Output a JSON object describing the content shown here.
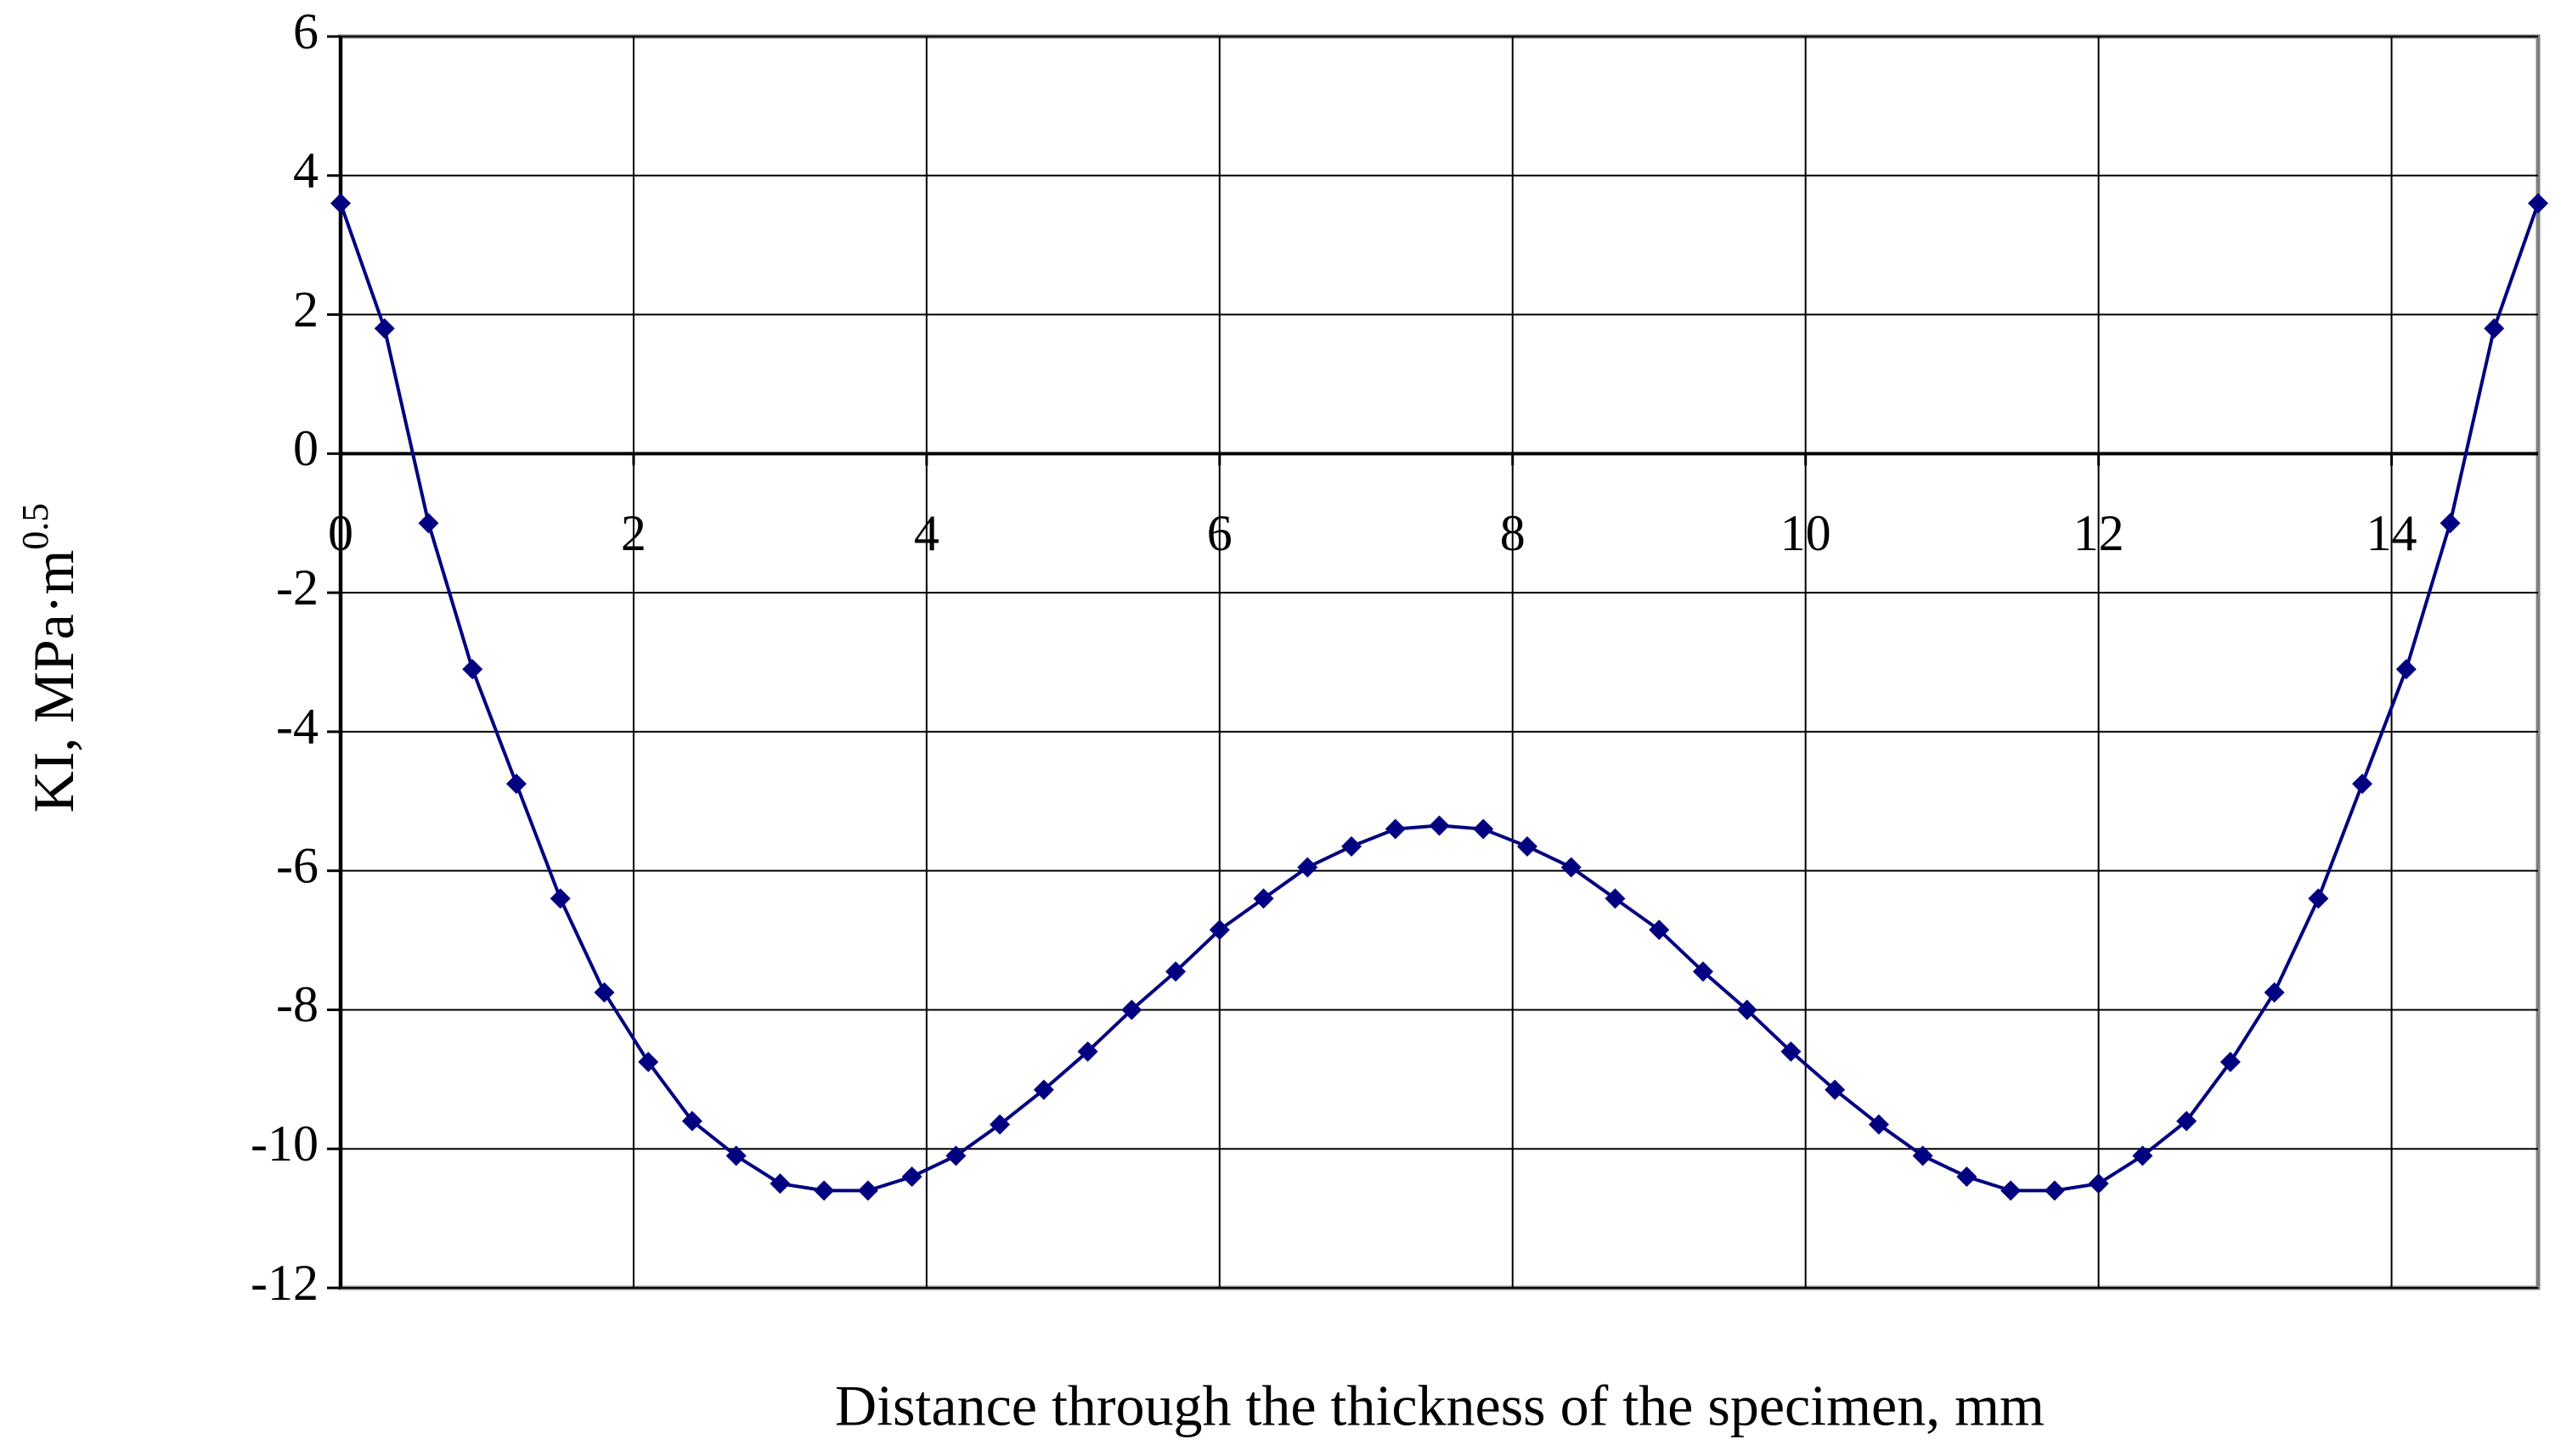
{
  "chart_data": {
    "type": "line",
    "xlabel": "Distance through the thickness of the specimen, mm",
    "ylabel": {
      "text": "KI, MPa·m",
      "superscript": "0.5"
    },
    "x": [
      0,
      0.3,
      0.6,
      0.9,
      1.2,
      1.5,
      1.8,
      2.1,
      2.4,
      2.7,
      3.0,
      3.3,
      3.6,
      3.9,
      4.2,
      4.5,
      4.8,
      5.1,
      5.4,
      5.7,
      6.0,
      6.3,
      6.6,
      6.9,
      7.2,
      7.5,
      7.8,
      8.1,
      8.4,
      8.7,
      9.0,
      9.3,
      9.6,
      9.9,
      10.2,
      10.5,
      10.8,
      11.1,
      11.4,
      11.7,
      12.0,
      12.3,
      12.6,
      12.9,
      13.2,
      13.5,
      13.8,
      14.1,
      14.4,
      14.7,
      15.0
    ],
    "values": [
      3.6,
      1.8,
      -1.0,
      -3.1,
      -4.75,
      -6.4,
      -7.75,
      -8.75,
      -9.6,
      -10.1,
      -10.5,
      -10.6,
      -10.6,
      -10.4,
      -10.1,
      -9.65,
      -9.15,
      -8.6,
      -8.0,
      -7.45,
      -6.85,
      -6.4,
      -5.95,
      -5.65,
      -5.4,
      -5.35,
      -5.4,
      -5.65,
      -5.95,
      -6.4,
      -6.85,
      -7.45,
      -8.0,
      -8.6,
      -9.15,
      -9.65,
      -10.1,
      -10.4,
      -10.6,
      -10.6,
      -10.5,
      -10.1,
      -9.6,
      -8.75,
      -7.75,
      -6.4,
      -4.75,
      -3.1,
      -1.0,
      1.8,
      3.6
    ],
    "color": "#000080",
    "marker": "diamond",
    "xlim": [
      0,
      15
    ],
    "xticks": [
      0,
      2,
      4,
      6,
      8,
      10,
      12,
      14
    ],
    "ylim": [
      -12,
      6
    ],
    "yticks": [
      -12,
      -10,
      -8,
      -6,
      -4,
      -2,
      0,
      2,
      4,
      6
    ],
    "grid": true
  }
}
